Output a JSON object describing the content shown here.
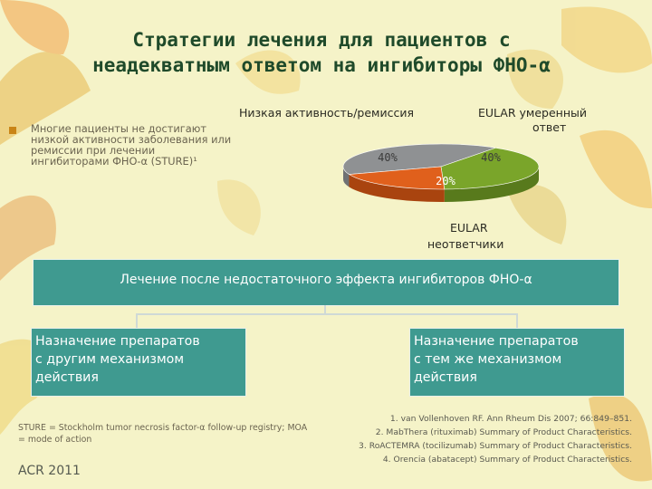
{
  "title_line1": "Стратегии лечения для пациентов с",
  "title_line2": "неадекватным ответом на ингибиторы ФНО-α",
  "bullet": "Многие пациенты не достигают низкой активности заболевания или ремиссии при лечении ингибиторами ФНО-α (STURE)¹",
  "colors": {
    "accent_brown": "#c98416",
    "teal_box": "#3f9a90",
    "slice_green": "#7aa52a",
    "slice_orange": "#e0601c",
    "slice_gray": "#8f9193"
  },
  "chart_data": {
    "type": "pie",
    "categories": [
      "Низкая активность/ремиссия",
      "EULAR умеренный ответ",
      "EULAR неответчики"
    ],
    "values": [
      40,
      40,
      20
    ],
    "data_labels": [
      "40%",
      "40%",
      "20%"
    ],
    "labels": {
      "low": "Низкая активность/ремиссия",
      "moderate_1": "EULAR  умеренный",
      "moderate_2": "ответ",
      "non_1": "EULAR",
      "non_2": "неответчики"
    }
  },
  "main_box": "Лечение после недостаточного эффекта ингибиторов ФНО-α",
  "left_box": [
    "Назначение препаратов",
    "с другим механизмом",
    "действия"
  ],
  "right_box": [
    "Назначение препаратов",
    "с тем же механизмом",
    "действия"
  ],
  "abbrev": "STURE = Stockholm tumor necrosis factor-α follow-up registry; MOA = mode of action",
  "acr": "ACR 2011",
  "refs": [
    "1. van Vollenhoven RF. Ann Rheum Dis 2007; 66:849–851.",
    "2. MabThera (rituximab) Summary of Product Characteristics.",
    "3. RoACTEMRA (tocilizumab) Summary of Product Characteristics.",
    "4. Orencia (abatacept) Summary of Product Characteristics."
  ]
}
